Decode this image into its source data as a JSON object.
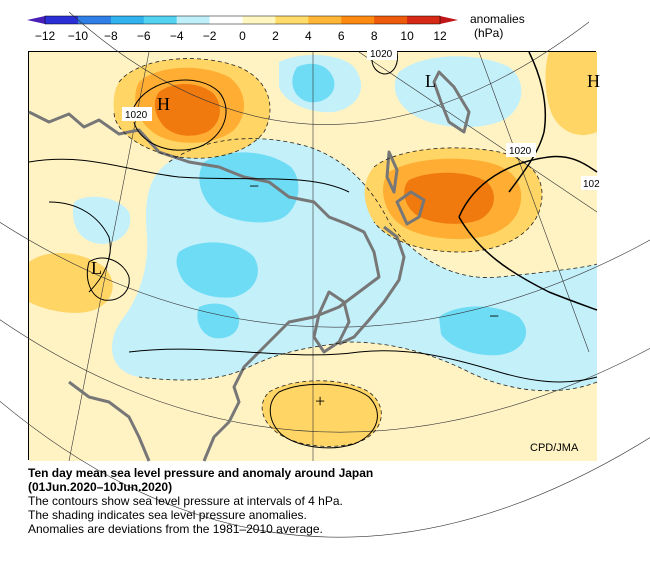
{
  "colorbar": {
    "title": "anomalies",
    "unit": "(hPa)",
    "ticks": [
      "−12",
      "−10",
      "−8",
      "−6",
      "−4",
      "−2",
      "0",
      "2",
      "4",
      "6",
      "8",
      "10",
      "12"
    ],
    "colors": [
      "#2a2fd6",
      "#2f7fe6",
      "#2fb2ee",
      "#53d2f2",
      "#bff0fa",
      "#ffffff",
      "#fff7c2",
      "#ffdc6a",
      "#ffb536",
      "#ff8a12",
      "#ee5a0c",
      "#d62a16"
    ]
  },
  "map": {
    "high_symbol": "H",
    "low_symbol": "L",
    "high_pressure_labels": [
      "H",
      "H"
    ],
    "low_pressure_labels": [
      "L",
      "L"
    ],
    "plus_marker": "+",
    "minus_markers": [
      "−",
      "−"
    ],
    "contour_labels": [
      "1020",
      "1020",
      "1020",
      "102"
    ],
    "credit": "CPD/JMA",
    "colors": {
      "positive_light": "#fff3c4",
      "positive_mid": "#ffd565",
      "positive_strong": "#ffae33",
      "positive_max": "#f07a0e",
      "negative_light": "#c4f0fa",
      "negative_mid": "#6fdcf5",
      "coast": "#777777"
    }
  },
  "caption": {
    "title": "Ten day mean sea level pressure and anomaly around Japan",
    "period": "(01Jun.2020–10Jun.2020)",
    "lines": [
      "The contours show sea level pressure at intervals of 4 hPa.",
      "The shading indicates sea level pressure anomalies.",
      "Anomalies are deviations from the 1981–2010 average."
    ]
  }
}
